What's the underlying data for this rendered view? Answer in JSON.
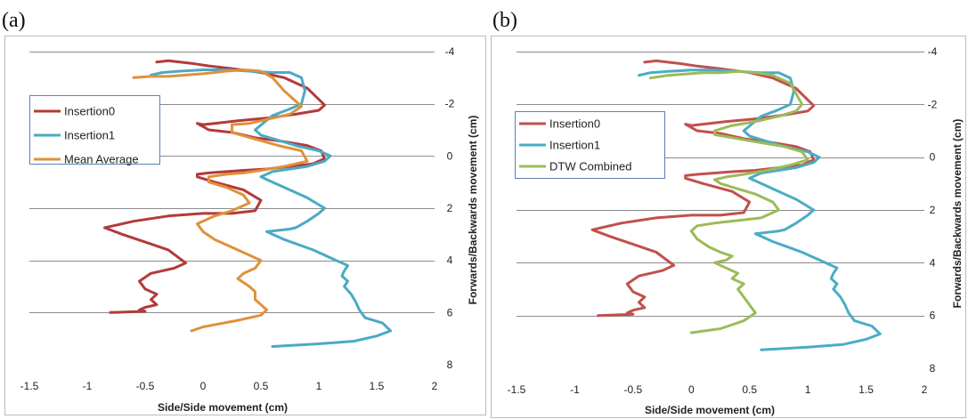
{
  "chart_data": [
    {
      "panel_label": "(a)",
      "type": "line",
      "xlabel": "Side/Side movement (cm)",
      "ylabel": "Forwards/Backwards  movement (cm)",
      "xlim": [
        -1.5,
        2
      ],
      "ylim": [
        -4,
        8
      ],
      "y_reversed": true,
      "y_axis_position": "right",
      "x_ticks": [
        "-1.5",
        "-1",
        "-0.5",
        "0",
        "0.5",
        "1",
        "1.5",
        "2"
      ],
      "y_ticks": [
        "-4",
        "-2",
        "0",
        "2",
        "4",
        "6",
        "8"
      ],
      "grid": "horizontal",
      "legend_position": "left",
      "series": [
        {
          "name": "Insertion0",
          "color": "#b33a3a",
          "x": [
            -0.4,
            -0.3,
            -0.1,
            0.05,
            0.25,
            0.5,
            0.7,
            0.9,
            1.05,
            1.0,
            0.8,
            0.55,
            0.3,
            0.1,
            0.0,
            -0.05,
            0.05,
            0.25,
            0.45,
            0.7,
            0.9,
            1.02,
            1.05,
            0.95,
            0.75,
            0.55,
            0.35,
            0.2,
            0.05,
            -0.05,
            -0.05,
            0.1,
            0.35,
            0.5,
            0.45,
            0.25,
            0.0,
            -0.3,
            -0.6,
            -0.85,
            -0.7,
            -0.5,
            -0.3,
            -0.15,
            -0.25,
            -0.45,
            -0.55,
            -0.5,
            -0.4,
            -0.45,
            -0.4,
            -0.5,
            -0.55,
            -0.5,
            -0.8
          ],
          "y": [
            -3.6,
            -3.65,
            -3.55,
            -3.45,
            -3.35,
            -3.2,
            -3.0,
            -2.6,
            -1.95,
            -1.75,
            -1.6,
            -1.45,
            -1.35,
            -1.25,
            -1.2,
            -1.25,
            -1.0,
            -0.9,
            -0.7,
            -0.55,
            -0.4,
            -0.2,
            0.1,
            0.3,
            0.4,
            0.5,
            0.55,
            0.6,
            0.65,
            0.7,
            0.8,
            1.0,
            1.3,
            1.7,
            2.1,
            2.2,
            2.2,
            2.3,
            2.5,
            2.75,
            3.0,
            3.3,
            3.6,
            4.1,
            4.3,
            4.5,
            4.8,
            5.1,
            5.3,
            5.5,
            5.7,
            5.8,
            5.9,
            5.95,
            6.0
          ]
        },
        {
          "name": "Insertion1",
          "color": "#4aaac5",
          "x": [
            -0.45,
            -0.35,
            -0.2,
            0.0,
            0.2,
            0.4,
            0.6,
            0.75,
            0.85,
            0.88,
            0.85,
            0.75,
            0.6,
            0.45,
            0.5,
            0.65,
            0.8,
            1.0,
            1.1,
            1.05,
            0.9,
            0.75,
            0.6,
            0.5,
            0.6,
            0.75,
            0.9,
            1.05,
            1.0,
            0.9,
            0.8,
            0.75,
            0.55,
            0.7,
            0.95,
            1.15,
            1.25,
            1.22,
            1.2,
            1.25,
            1.22,
            1.28,
            1.32,
            1.35,
            1.4,
            1.55,
            1.62,
            1.5,
            1.3,
            1.0,
            0.6
          ],
          "y": [
            -3.1,
            -3.2,
            -3.25,
            -3.3,
            -3.3,
            -3.25,
            -3.2,
            -3.2,
            -3.0,
            -2.5,
            -2.0,
            -1.8,
            -1.55,
            -1.0,
            -0.8,
            -0.6,
            -0.4,
            -0.2,
            0.0,
            0.2,
            0.4,
            0.5,
            0.6,
            0.8,
            1.0,
            1.3,
            1.6,
            2.0,
            2.2,
            2.5,
            2.75,
            2.8,
            2.9,
            3.2,
            3.6,
            4.0,
            4.2,
            4.4,
            4.6,
            4.8,
            5.0,
            5.3,
            5.6,
            5.9,
            6.2,
            6.4,
            6.7,
            6.9,
            7.1,
            7.2,
            7.3
          ]
        },
        {
          "name": "Mean Average",
          "color": "#e0913a",
          "x": [
            -0.6,
            -0.45,
            -0.3,
            -0.15,
            0.0,
            0.1,
            0.2,
            0.35,
            0.5,
            0.6,
            0.7,
            0.85,
            0.75,
            0.55,
            0.4,
            0.25,
            0.25,
            0.45,
            0.65,
            0.85,
            0.9,
            0.7,
            0.5,
            0.35,
            0.2,
            0.05,
            0.05,
            0.2,
            0.35,
            0.4,
            0.25,
            0.1,
            -0.05,
            0.0,
            0.1,
            0.25,
            0.35,
            0.5,
            0.45,
            0.35,
            0.3,
            0.4,
            0.45,
            0.45,
            0.5,
            0.55,
            0.5,
            0.3,
            0.0,
            -0.1
          ],
          "y": [
            -3.0,
            -3.05,
            -3.05,
            -3.1,
            -3.15,
            -3.2,
            -3.25,
            -3.3,
            -3.25,
            -3.0,
            -2.5,
            -1.9,
            -1.6,
            -1.4,
            -1.25,
            -1.2,
            -0.9,
            -0.65,
            -0.4,
            -0.2,
            0.2,
            0.4,
            0.55,
            0.65,
            0.7,
            0.8,
            1.0,
            1.2,
            1.5,
            1.8,
            2.1,
            2.3,
            2.6,
            2.9,
            3.2,
            3.5,
            3.7,
            4.0,
            4.3,
            4.5,
            4.7,
            5.0,
            5.2,
            5.5,
            5.7,
            5.9,
            6.1,
            6.3,
            6.55,
            6.7
          ]
        }
      ]
    },
    {
      "panel_label": "(b)",
      "type": "line",
      "xlabel": "Side/Side movement (cm)",
      "ylabel": "Forwards/Backwards  movement (cm)",
      "xlim": [
        -1.5,
        2
      ],
      "ylim": [
        -4,
        8
      ],
      "y_reversed": true,
      "y_axis_position": "right",
      "x_ticks": [
        "-1.5",
        "-1",
        "-0.5",
        "0",
        "0.5",
        "1",
        "1.5",
        "2"
      ],
      "y_ticks": [
        "-4",
        "-2",
        "0",
        "2",
        "4",
        "6",
        "8"
      ],
      "grid": "horizontal",
      "legend_position": "left",
      "series": [
        {
          "name": "Insertion0",
          "color": "#c0504d",
          "x": [
            -0.4,
            -0.3,
            -0.1,
            0.05,
            0.25,
            0.5,
            0.7,
            0.9,
            1.05,
            1.0,
            0.8,
            0.55,
            0.3,
            0.1,
            0.0,
            -0.05,
            0.05,
            0.25,
            0.45,
            0.7,
            0.9,
            1.02,
            1.05,
            0.95,
            0.75,
            0.55,
            0.35,
            0.2,
            0.05,
            -0.05,
            -0.05,
            0.1,
            0.35,
            0.5,
            0.45,
            0.25,
            0.0,
            -0.3,
            -0.6,
            -0.85,
            -0.7,
            -0.5,
            -0.3,
            -0.15,
            -0.25,
            -0.45,
            -0.55,
            -0.5,
            -0.4,
            -0.45,
            -0.4,
            -0.5,
            -0.55,
            -0.5,
            -0.8
          ],
          "y": [
            -3.6,
            -3.65,
            -3.55,
            -3.45,
            -3.35,
            -3.2,
            -3.0,
            -2.6,
            -1.95,
            -1.75,
            -1.6,
            -1.45,
            -1.35,
            -1.25,
            -1.2,
            -1.25,
            -1.0,
            -0.9,
            -0.7,
            -0.55,
            -0.4,
            -0.2,
            0.1,
            0.3,
            0.4,
            0.5,
            0.55,
            0.6,
            0.65,
            0.7,
            0.8,
            1.0,
            1.3,
            1.7,
            2.1,
            2.2,
            2.2,
            2.3,
            2.5,
            2.75,
            3.0,
            3.3,
            3.6,
            4.1,
            4.3,
            4.5,
            4.8,
            5.1,
            5.3,
            5.5,
            5.7,
            5.8,
            5.9,
            5.95,
            6.0
          ]
        },
        {
          "name": "Insertion1",
          "color": "#4bacc6",
          "x": [
            -0.45,
            -0.35,
            -0.2,
            0.0,
            0.2,
            0.4,
            0.6,
            0.75,
            0.85,
            0.88,
            0.85,
            0.75,
            0.6,
            0.45,
            0.5,
            0.65,
            0.8,
            1.0,
            1.1,
            1.05,
            0.9,
            0.75,
            0.6,
            0.5,
            0.6,
            0.75,
            0.9,
            1.05,
            1.0,
            0.9,
            0.8,
            0.75,
            0.55,
            0.7,
            0.95,
            1.15,
            1.25,
            1.22,
            1.2,
            1.25,
            1.22,
            1.28,
            1.32,
            1.35,
            1.4,
            1.55,
            1.62,
            1.5,
            1.3,
            1.0,
            0.6
          ],
          "y": [
            -3.1,
            -3.2,
            -3.25,
            -3.3,
            -3.3,
            -3.25,
            -3.2,
            -3.2,
            -3.0,
            -2.5,
            -2.0,
            -1.8,
            -1.55,
            -1.0,
            -0.8,
            -0.6,
            -0.4,
            -0.2,
            0.0,
            0.2,
            0.4,
            0.5,
            0.6,
            0.8,
            1.0,
            1.3,
            1.6,
            2.0,
            2.2,
            2.5,
            2.75,
            2.8,
            2.9,
            3.2,
            3.6,
            4.0,
            4.2,
            4.4,
            4.6,
            4.8,
            5.0,
            5.3,
            5.6,
            5.9,
            6.2,
            6.4,
            6.7,
            6.9,
            7.1,
            7.2,
            7.3
          ]
        },
        {
          "name": "DTW Combined",
          "color": "#9bbb59",
          "x": [
            -0.35,
            -0.2,
            -0.05,
            0.1,
            0.25,
            0.4,
            0.55,
            0.7,
            0.85,
            0.95,
            0.9,
            0.75,
            0.55,
            0.35,
            0.2,
            0.2,
            0.4,
            0.6,
            0.8,
            0.95,
            1.0,
            0.85,
            0.65,
            0.45,
            0.3,
            0.2,
            0.25,
            0.4,
            0.55,
            0.7,
            0.75,
            0.6,
            0.4,
            0.2,
            0.05,
            0.0,
            0.05,
            0.15,
            0.25,
            0.35,
            0.3,
            0.2,
            0.3,
            0.4,
            0.35,
            0.45,
            0.4,
            0.45,
            0.5,
            0.55,
            0.45,
            0.25,
            0.0
          ],
          "y": [
            -3.0,
            -3.1,
            -3.15,
            -3.2,
            -3.2,
            -3.25,
            -3.2,
            -3.1,
            -2.8,
            -2.0,
            -1.75,
            -1.55,
            -1.35,
            -1.2,
            -1.0,
            -0.85,
            -0.7,
            -0.55,
            -0.4,
            -0.2,
            0.1,
            0.3,
            0.5,
            0.65,
            0.75,
            0.85,
            1.0,
            1.2,
            1.4,
            1.7,
            2.0,
            2.3,
            2.4,
            2.5,
            2.6,
            2.8,
            3.1,
            3.4,
            3.6,
            3.75,
            3.9,
            4.0,
            4.2,
            4.4,
            4.6,
            4.8,
            5.0,
            5.3,
            5.6,
            5.9,
            6.2,
            6.5,
            6.65
          ]
        }
      ]
    }
  ]
}
